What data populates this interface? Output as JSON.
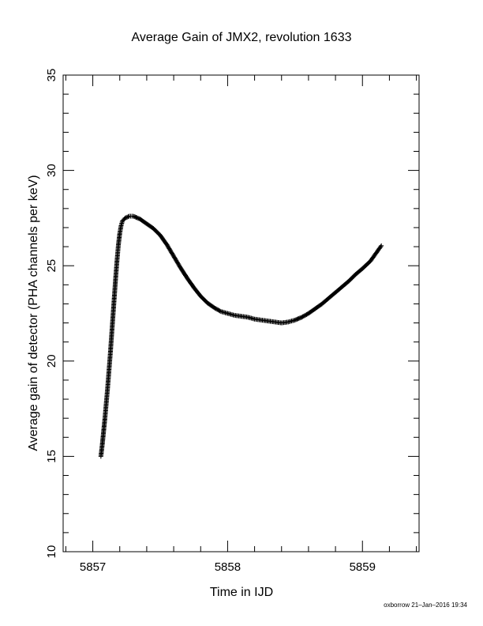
{
  "chart_data": {
    "type": "scatter",
    "title": "Average Gain of JMX2, revolution 1633",
    "xlabel": "Time in IJD",
    "ylabel": "Average gain of detector (PHA channels per keV)",
    "xlim": [
      5856.78,
      5859.42
    ],
    "ylim": [
      10,
      35
    ],
    "xticks": [
      5857,
      5858,
      5859
    ],
    "yticks": [
      10,
      15,
      20,
      25,
      30,
      35
    ],
    "x_minor_step": 0.2,
    "y_minor_step": 1,
    "grid": false,
    "marker": "plus",
    "series": [
      {
        "points": [
          [
            5857.06,
            15.0
          ],
          [
            5857.07,
            15.6
          ],
          [
            5857.08,
            16.3
          ],
          [
            5857.09,
            17.0
          ],
          [
            5857.1,
            17.8
          ],
          [
            5857.11,
            18.6
          ],
          [
            5857.12,
            19.5
          ],
          [
            5857.13,
            20.4
          ],
          [
            5857.14,
            21.4
          ],
          [
            5857.15,
            22.4
          ],
          [
            5857.16,
            23.4
          ],
          [
            5857.17,
            24.4
          ],
          [
            5857.18,
            25.3
          ],
          [
            5857.19,
            26.1
          ],
          [
            5857.2,
            26.7
          ],
          [
            5857.21,
            27.1
          ],
          [
            5857.22,
            27.35
          ],
          [
            5857.24,
            27.5
          ],
          [
            5857.27,
            27.6
          ],
          [
            5857.3,
            27.6
          ],
          [
            5857.35,
            27.45
          ],
          [
            5857.4,
            27.2
          ],
          [
            5857.45,
            26.95
          ],
          [
            5857.5,
            26.6
          ],
          [
            5857.55,
            26.1
          ],
          [
            5857.6,
            25.5
          ],
          [
            5857.65,
            24.9
          ],
          [
            5857.7,
            24.35
          ],
          [
            5857.75,
            23.85
          ],
          [
            5857.8,
            23.4
          ],
          [
            5857.85,
            23.05
          ],
          [
            5857.9,
            22.8
          ],
          [
            5857.95,
            22.6
          ],
          [
            5858.0,
            22.5
          ],
          [
            5858.05,
            22.4
          ],
          [
            5858.1,
            22.35
          ],
          [
            5858.15,
            22.3
          ],
          [
            5858.2,
            22.2
          ],
          [
            5858.25,
            22.15
          ],
          [
            5858.3,
            22.1
          ],
          [
            5858.35,
            22.05
          ],
          [
            5858.4,
            22.0
          ],
          [
            5858.45,
            22.05
          ],
          [
            5858.5,
            22.15
          ],
          [
            5858.55,
            22.3
          ],
          [
            5858.6,
            22.5
          ],
          [
            5858.65,
            22.75
          ],
          [
            5858.7,
            23.0
          ],
          [
            5858.75,
            23.3
          ],
          [
            5858.8,
            23.6
          ],
          [
            5858.85,
            23.9
          ],
          [
            5858.9,
            24.2
          ],
          [
            5858.95,
            24.55
          ],
          [
            5859.0,
            24.85
          ],
          [
            5859.03,
            25.05
          ],
          [
            5859.06,
            25.25
          ],
          [
            5859.08,
            25.45
          ],
          [
            5859.1,
            25.65
          ],
          [
            5859.12,
            25.85
          ],
          [
            5859.14,
            26.05
          ]
        ]
      }
    ]
  },
  "footer": {
    "credit": "oxborrow 21–Jan–2016 19:34"
  }
}
